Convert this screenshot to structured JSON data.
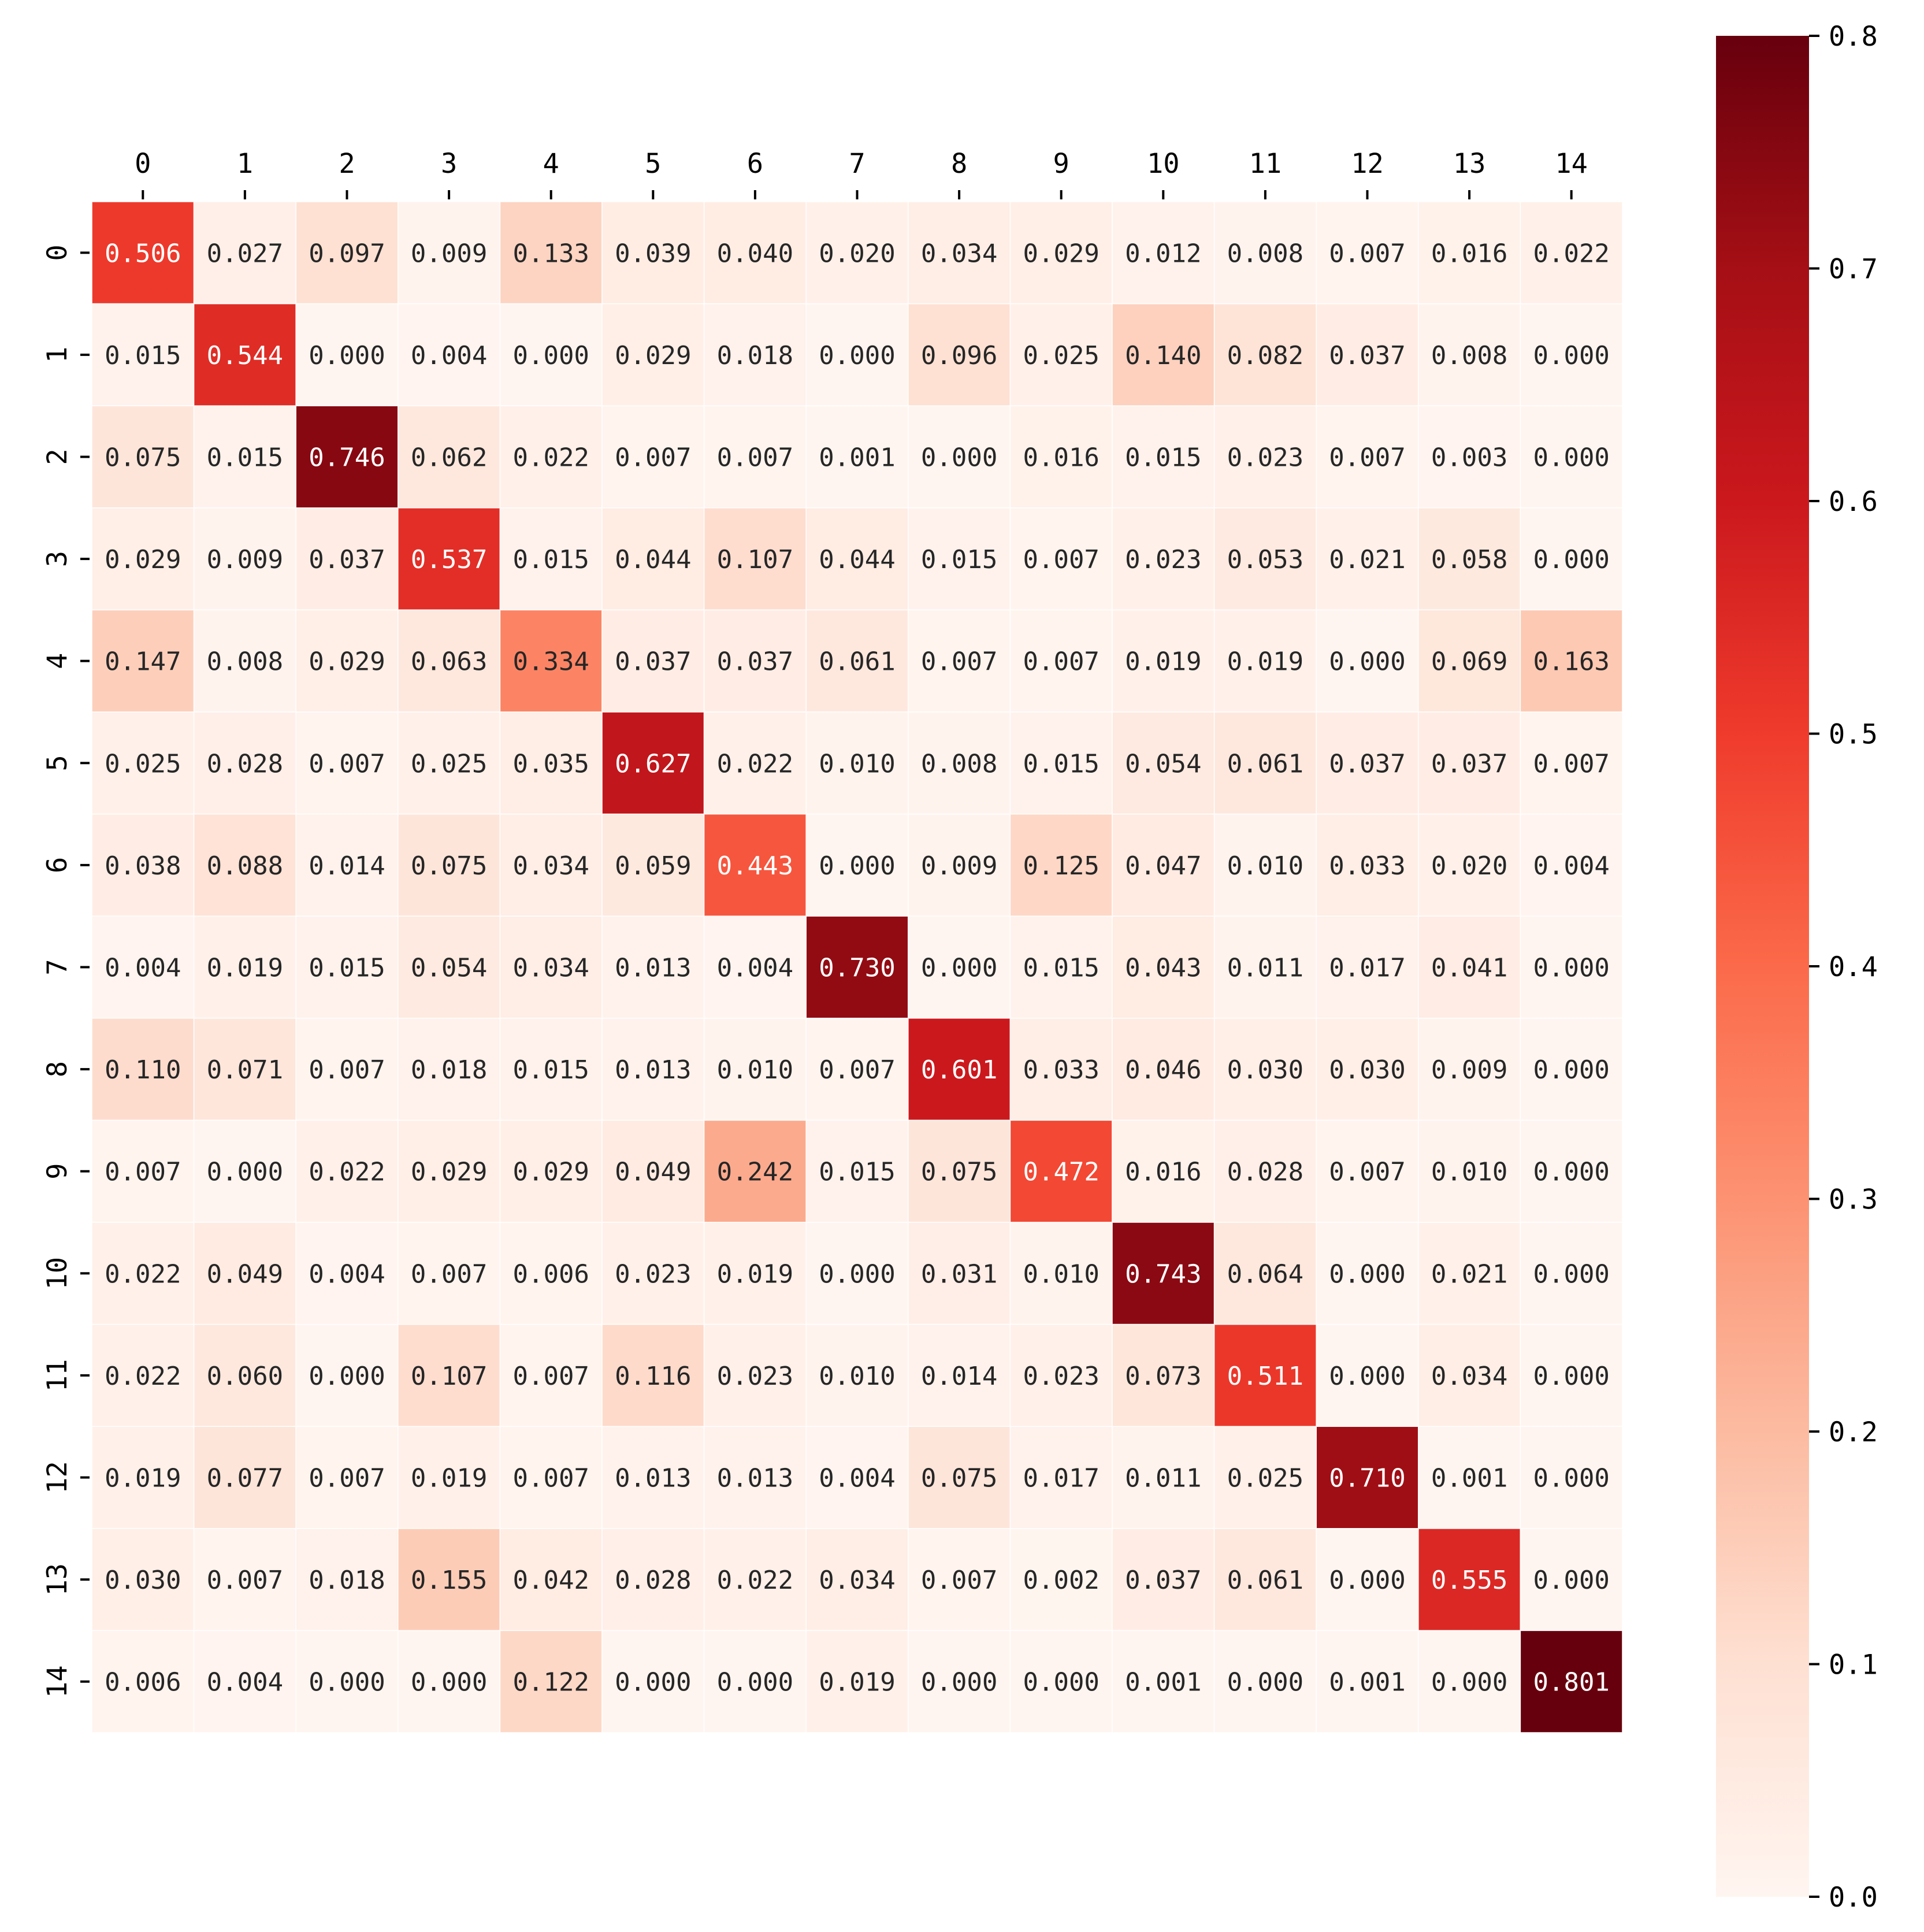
{
  "chart_data": {
    "type": "heatmap",
    "title": "",
    "xlabel": "",
    "ylabel": "",
    "x_categories": [
      "0",
      "1",
      "2",
      "3",
      "4",
      "5",
      "6",
      "7",
      "8",
      "9",
      "10",
      "11",
      "12",
      "13",
      "14"
    ],
    "y_categories": [
      "0",
      "1",
      "2",
      "3",
      "4",
      "5",
      "6",
      "7",
      "8",
      "9",
      "10",
      "11",
      "12",
      "13",
      "14"
    ],
    "x_axis_position": "top",
    "values": [
      [
        "0.506",
        "0.027",
        "0.097",
        "0.009",
        "0.133",
        "0.039",
        "0.040",
        "0.020",
        "0.034",
        "0.029",
        "0.012",
        "0.008",
        "0.007",
        "0.016",
        "0.022"
      ],
      [
        "0.015",
        "0.544",
        "0.000",
        "0.004",
        "0.000",
        "0.029",
        "0.018",
        "0.000",
        "0.096",
        "0.025",
        "0.140",
        "0.082",
        "0.037",
        "0.008",
        "0.000"
      ],
      [
        "0.075",
        "0.015",
        "0.746",
        "0.062",
        "0.022",
        "0.007",
        "0.007",
        "0.001",
        "0.000",
        "0.016",
        "0.015",
        "0.023",
        "0.007",
        "0.003",
        "0.000"
      ],
      [
        "0.029",
        "0.009",
        "0.037",
        "0.537",
        "0.015",
        "0.044",
        "0.107",
        "0.044",
        "0.015",
        "0.007",
        "0.023",
        "0.053",
        "0.021",
        "0.058",
        "0.000"
      ],
      [
        "0.147",
        "0.008",
        "0.029",
        "0.063",
        "0.334",
        "0.037",
        "0.037",
        "0.061",
        "0.007",
        "0.007",
        "0.019",
        "0.019",
        "0.000",
        "0.069",
        "0.163"
      ],
      [
        "0.025",
        "0.028",
        "0.007",
        "0.025",
        "0.035",
        "0.627",
        "0.022",
        "0.010",
        "0.008",
        "0.015",
        "0.054",
        "0.061",
        "0.037",
        "0.037",
        "0.007"
      ],
      [
        "0.038",
        "0.088",
        "0.014",
        "0.075",
        "0.034",
        "0.059",
        "0.443",
        "0.000",
        "0.009",
        "0.125",
        "0.047",
        "0.010",
        "0.033",
        "0.020",
        "0.004"
      ],
      [
        "0.004",
        "0.019",
        "0.015",
        "0.054",
        "0.034",
        "0.013",
        "0.004",
        "0.730",
        "0.000",
        "0.015",
        "0.043",
        "0.011",
        "0.017",
        "0.041",
        "0.000"
      ],
      [
        "0.110",
        "0.071",
        "0.007",
        "0.018",
        "0.015",
        "0.013",
        "0.010",
        "0.007",
        "0.601",
        "0.033",
        "0.046",
        "0.030",
        "0.030",
        "0.009",
        "0.000"
      ],
      [
        "0.007",
        "0.000",
        "0.022",
        "0.029",
        "0.029",
        "0.049",
        "0.242",
        "0.015",
        "0.075",
        "0.472",
        "0.016",
        "0.028",
        "0.007",
        "0.010",
        "0.000"
      ],
      [
        "0.022",
        "0.049",
        "0.004",
        "0.007",
        "0.006",
        "0.023",
        "0.019",
        "0.000",
        "0.031",
        "0.010",
        "0.743",
        "0.064",
        "0.000",
        "0.021",
        "0.000"
      ],
      [
        "0.022",
        "0.060",
        "0.000",
        "0.107",
        "0.007",
        "0.116",
        "0.023",
        "0.010",
        "0.014",
        "0.023",
        "0.073",
        "0.511",
        "0.000",
        "0.034",
        "0.000"
      ],
      [
        "0.019",
        "0.077",
        "0.007",
        "0.019",
        "0.007",
        "0.013",
        "0.013",
        "0.004",
        "0.075",
        "0.017",
        "0.011",
        "0.025",
        "0.710",
        "0.001",
        "0.000"
      ],
      [
        "0.030",
        "0.007",
        "0.018",
        "0.155",
        "0.042",
        "0.028",
        "0.022",
        "0.034",
        "0.007",
        "0.002",
        "0.037",
        "0.061",
        "0.000",
        "0.555",
        "0.000"
      ],
      [
        "0.006",
        "0.004",
        "0.000",
        "0.000",
        "0.122",
        "0.000",
        "0.000",
        "0.019",
        "0.000",
        "0.000",
        "0.001",
        "0.000",
        "0.001",
        "0.000",
        "0.801"
      ]
    ],
    "colorbar": {
      "range": [
        0,
        0.8
      ],
      "ticks": [
        "0.0",
        "0.1",
        "0.2",
        "0.3",
        "0.4",
        "0.5",
        "0.6",
        "0.7",
        "0.8"
      ],
      "colormap": "Reds",
      "stops": [
        "#fff5f0",
        "#fee0d2",
        "#fcbba1",
        "#fc9272",
        "#fb6a4a",
        "#ef3b2c",
        "#cb181d",
        "#a50f15",
        "#67000d"
      ]
    },
    "grid": false,
    "legend": "colorbar-right"
  }
}
